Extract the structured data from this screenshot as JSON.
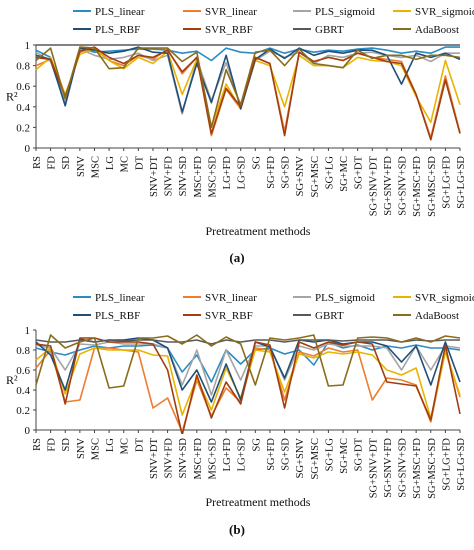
{
  "colors": {
    "PLS_linear": "#2b8cc4",
    "SVR_linear": "#ed7d31",
    "PLS_sigmoid": "#a5a5a5",
    "SVR_sigmoid": "#e8b400",
    "PLS_RBF": "#1f4e79",
    "SVR_RBF": "#a23d0f",
    "GBRT": "#595959",
    "AdaBoost": "#8a6d1c"
  },
  "chart_data": [
    {
      "type": "line",
      "panel_label": "(a)",
      "xlabel": "Pretreatment methods",
      "ylabel": "R²",
      "ylim": [
        0,
        1
      ],
      "yticks": [
        0,
        0.2,
        0.4,
        0.6,
        0.8,
        1
      ],
      "legend_position": "top",
      "categories": [
        "RS",
        "FD",
        "SD",
        "SNV",
        "MSC",
        "LG",
        "MC",
        "DT",
        "SNV+DT",
        "SNV+FD",
        "SNV+SD",
        "MSC+FD",
        "MSC+SD",
        "LG+FD",
        "LG+SD",
        "SG",
        "SG+FD",
        "SG+SD",
        "SG+SNV",
        "SG+MSC",
        "SG+LG",
        "SG+MC",
        "SG+DT",
        "SG+SNV+DT",
        "SG+SNV+FD",
        "SG+SNV+SD",
        "SG+MSC+FD",
        "SG+MSC+SD",
        "SG+LG+FD",
        "SG+LG+SD"
      ],
      "series": [
        {
          "name": "PLS_linear",
          "values": [
            0.95,
            0.88,
            0.42,
            0.97,
            0.93,
            0.94,
            0.95,
            0.96,
            0.96,
            0.95,
            0.92,
            0.94,
            0.85,
            0.97,
            0.93,
            0.92,
            0.97,
            0.92,
            0.96,
            0.93,
            0.95,
            0.94,
            0.96,
            0.97,
            0.95,
            0.92,
            0.94,
            0.92,
            0.98,
            0.98
          ]
        },
        {
          "name": "SVR_linear",
          "values": [
            0.8,
            0.86,
            0.5,
            0.93,
            0.98,
            0.85,
            0.8,
            0.9,
            0.86,
            0.96,
            0.72,
            0.88,
            0.12,
            0.57,
            0.38,
            0.88,
            0.82,
            0.16,
            0.93,
            0.84,
            0.88,
            0.85,
            0.92,
            0.88,
            0.86,
            0.84,
            0.52,
            0.1,
            0.7,
            0.15
          ]
        },
        {
          "name": "PLS_sigmoid",
          "values": [
            0.93,
            0.84,
            0.45,
            0.96,
            0.9,
            0.86,
            0.88,
            0.92,
            0.85,
            0.9,
            0.33,
            0.86,
            0.46,
            0.83,
            0.4,
            0.85,
            0.94,
            0.88,
            0.93,
            0.82,
            0.9,
            0.88,
            0.92,
            0.93,
            0.9,
            0.88,
            0.9,
            0.84,
            0.92,
            0.92
          ]
        },
        {
          "name": "SVR_sigmoid",
          "values": [
            0.76,
            0.88,
            0.52,
            0.91,
            0.96,
            0.85,
            0.77,
            0.88,
            0.82,
            0.94,
            0.52,
            0.86,
            0.2,
            0.62,
            0.38,
            0.85,
            0.8,
            0.4,
            0.9,
            0.8,
            0.8,
            0.78,
            0.88,
            0.85,
            0.84,
            0.8,
            0.5,
            0.25,
            0.85,
            0.42
          ]
        },
        {
          "name": "PLS_RBF",
          "values": [
            0.9,
            0.86,
            0.41,
            0.97,
            0.95,
            0.92,
            0.94,
            0.98,
            0.93,
            0.92,
            0.35,
            0.82,
            0.44,
            0.9,
            0.38,
            0.86,
            0.96,
            0.87,
            0.97,
            0.9,
            0.94,
            0.92,
            0.95,
            0.95,
            0.9,
            0.62,
            0.92,
            0.88,
            0.92,
            0.86
          ]
        },
        {
          "name": "SVR_RBF",
          "values": [
            0.88,
            0.86,
            0.5,
            0.94,
            0.98,
            0.88,
            0.82,
            0.9,
            0.88,
            0.95,
            0.74,
            0.88,
            0.14,
            0.58,
            0.4,
            0.88,
            0.82,
            0.12,
            0.93,
            0.84,
            0.88,
            0.85,
            0.92,
            0.88,
            0.84,
            0.82,
            0.52,
            0.08,
            0.66,
            0.14
          ]
        },
        {
          "name": "GBRT",
          "values": [
            1,
            1,
            1,
            1,
            1,
            1,
            1,
            1,
            1,
            1,
            1,
            1,
            1,
            1,
            1,
            1,
            1,
            1,
            1,
            1,
            1,
            1,
            1,
            1,
            1,
            1,
            1,
            1,
            1,
            1
          ]
        },
        {
          "name": "AdaBoost",
          "values": [
            0.85,
            0.97,
            0.48,
            0.98,
            0.97,
            0.77,
            0.78,
            0.97,
            0.97,
            0.97,
            0.84,
            0.93,
            0.2,
            0.76,
            0.42,
            0.93,
            0.95,
            0.8,
            0.96,
            0.82,
            0.8,
            0.78,
            0.95,
            0.87,
            0.9,
            0.9,
            0.86,
            0.9,
            0.9,
            0.88
          ]
        }
      ]
    },
    {
      "type": "line",
      "panel_label": "(b)",
      "xlabel": "Pretreatment methods",
      "ylabel": "R²",
      "ylim": [
        0,
        1
      ],
      "yticks": [
        0,
        0.2,
        0.4,
        0.6,
        0.8,
        1
      ],
      "legend_position": "top",
      "categories": [
        "RS",
        "FD",
        "SD",
        "SNV",
        "MSC",
        "LG",
        "MC",
        "DT",
        "SNV+DT",
        "SNV+FD",
        "SNV+SD",
        "MSC+FD",
        "MSC+SD",
        "LG+FD",
        "LG+SD",
        "SG",
        "SG+FD",
        "SG+SD",
        "SG+SNV",
        "SG+MSC",
        "SG+LG",
        "SG+MC",
        "SG+DT",
        "SG+SNV+DT",
        "SG+SNV+FD",
        "SG+SNV+SD",
        "SG+MSC+FD",
        "SG+MSC+SD",
        "SG+LG+FD",
        "SG+LG+SD"
      ],
      "series": [
        {
          "name": "PLS_linear",
          "values": [
            0.82,
            0.78,
            0.75,
            0.8,
            0.84,
            0.82,
            0.84,
            0.84,
            0.85,
            0.82,
            0.58,
            0.75,
            0.48,
            0.8,
            0.66,
            0.8,
            0.82,
            0.76,
            0.8,
            0.65,
            0.88,
            0.82,
            0.85,
            0.8,
            0.84,
            0.82,
            0.85,
            0.82,
            0.82,
            0.8
          ]
        },
        {
          "name": "SVR_linear",
          "values": [
            0.62,
            0.8,
            0.28,
            0.3,
            0.82,
            0.82,
            0.8,
            0.78,
            0.22,
            0.32,
            -0.02,
            0.5,
            0.14,
            0.42,
            0.28,
            0.82,
            0.8,
            0.3,
            0.78,
            0.74,
            0.82,
            0.78,
            0.8,
            0.3,
            0.52,
            0.5,
            0.45,
            0.08,
            0.8,
            0.33
          ]
        },
        {
          "name": "PLS_sigmoid",
          "values": [
            0.85,
            0.82,
            0.6,
            0.86,
            0.85,
            0.88,
            0.86,
            0.86,
            0.86,
            0.82,
            0.45,
            0.8,
            0.35,
            0.8,
            0.5,
            0.84,
            0.84,
            0.5,
            0.84,
            0.8,
            0.86,
            0.84,
            0.84,
            0.84,
            0.82,
            0.6,
            0.84,
            0.6,
            0.84,
            0.82
          ]
        },
        {
          "name": "SVR_sigmoid",
          "values": [
            0.7,
            0.82,
            0.36,
            0.76,
            0.82,
            0.8,
            0.8,
            0.8,
            0.75,
            0.74,
            0.15,
            0.52,
            0.2,
            0.62,
            0.32,
            0.8,
            0.78,
            0.38,
            0.76,
            0.72,
            0.78,
            0.76,
            0.78,
            0.75,
            0.6,
            0.55,
            0.62,
            0.12,
            0.78,
            0.35
          ]
        },
        {
          "name": "PLS_RBF",
          "values": [
            0.88,
            0.75,
            0.4,
            0.91,
            0.88,
            0.9,
            0.9,
            0.92,
            0.9,
            0.82,
            0.4,
            0.6,
            0.28,
            0.66,
            0.3,
            0.88,
            0.83,
            0.52,
            0.9,
            0.88,
            0.9,
            0.86,
            0.88,
            0.88,
            0.84,
            0.68,
            0.84,
            0.45,
            0.88,
            0.48
          ]
        },
        {
          "name": "SVR_RBF",
          "values": [
            0.86,
            0.84,
            0.26,
            0.92,
            0.92,
            0.88,
            0.88,
            0.88,
            0.86,
            0.6,
            -0.05,
            0.55,
            0.12,
            0.48,
            0.26,
            0.88,
            0.85,
            0.22,
            0.88,
            0.82,
            0.88,
            0.85,
            0.88,
            0.86,
            0.48,
            0.46,
            0.44,
            0.1,
            0.85,
            0.16
          ]
        },
        {
          "name": "GBRT",
          "values": [
            0.9,
            0.88,
            0.88,
            0.9,
            0.88,
            0.9,
            0.89,
            0.9,
            0.9,
            0.88,
            0.88,
            0.9,
            0.86,
            0.9,
            0.88,
            0.9,
            0.9,
            0.88,
            0.9,
            0.9,
            0.9,
            0.89,
            0.9,
            0.9,
            0.9,
            0.88,
            0.9,
            0.89,
            0.9,
            0.9
          ]
        },
        {
          "name": "AdaBoost",
          "values": [
            0.45,
            0.95,
            0.82,
            0.88,
            0.92,
            0.42,
            0.44,
            0.92,
            0.92,
            0.94,
            0.86,
            0.95,
            0.84,
            0.93,
            0.86,
            0.45,
            0.92,
            0.9,
            0.92,
            0.95,
            0.44,
            0.45,
            0.92,
            0.93,
            0.92,
            0.88,
            0.92,
            0.88,
            0.94,
            0.92
          ]
        }
      ]
    }
  ]
}
